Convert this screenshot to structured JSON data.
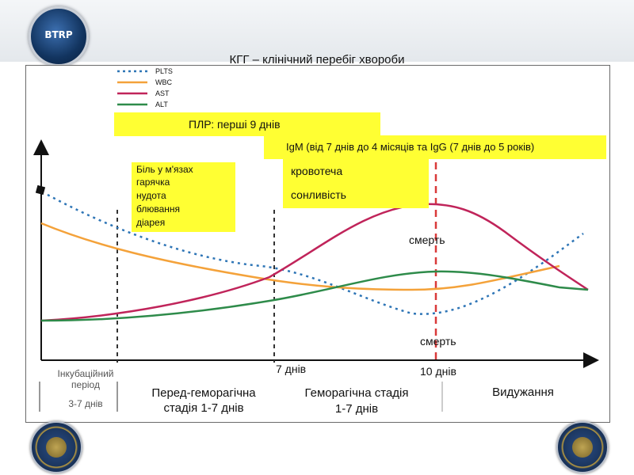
{
  "header": {
    "logo_text": "BTRP"
  },
  "chart_data": {
    "type": "line",
    "title": "КГГ – клінічний перебіг хвороби",
    "xlabel": "",
    "ylabel": "",
    "grid": false,
    "legend_position": "top-left",
    "series": [
      {
        "name": "PLTS",
        "color": "#2e75b6",
        "style": "dotted"
      },
      {
        "name": "WBC",
        "color": "#f4a23a",
        "style": "solid"
      },
      {
        "name": "AST",
        "color": "#c0245a",
        "style": "solid"
      },
      {
        "name": "ALT",
        "color": "#2e8b4a",
        "style": "solid"
      }
    ],
    "markers": [
      {
        "label": "7 днів"
      },
      {
        "label": "10 днів"
      }
    ],
    "annotations": {
      "plr": "ПЛР: перші  9 днів",
      "igm": "IgM (від 7 днів до  4 місяців та IgG (7 днів до 5 років)",
      "bleeding": "кровотеча",
      "drowsiness": "сонливість",
      "symptoms": [
        "Біль у м'язах",
        "гарячка",
        "нудота",
        "блювання",
        "діарея"
      ],
      "death_upper": "смерть",
      "death_lower": "смерть"
    },
    "stages": {
      "incubation": "Інкубаційний період",
      "incubation_days": "3-7 днів",
      "prehemorrhagic": "Перед-геморагічна стадія 1-7 днів",
      "hemorrhagic_line1": "Геморагічна  стадія",
      "hemorrhagic_line2": "1-7 днів",
      "recovery": "Видужання"
    }
  }
}
